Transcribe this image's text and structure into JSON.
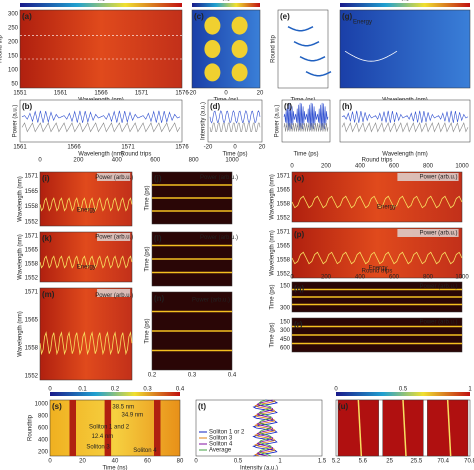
{
  "panels": [
    {
      "label": "(a)",
      "ylabel": "Round trip",
      "xlabel": "Wavelength (nm)",
      "xticks": [
        "1551",
        "1561",
        "1566",
        "1571",
        "1576"
      ],
      "yticks": [
        "300",
        "250",
        "200",
        "150",
        "100",
        "50"
      ],
      "cbar": [
        "0.5"
      ]
    },
    {
      "label": "(c)",
      "xlabel": "Time (ps)",
      "xticks": [
        "-20",
        "0",
        "20"
      ],
      "cbar": [
        "0.5"
      ]
    },
    {
      "label": "(e)",
      "ylabel": "Round trip",
      "xlabel": "Time (ps)"
    },
    {
      "label": "(g)",
      "xlabel": "Wavelength (nm)",
      "notes": [
        "Energy"
      ],
      "cbar": [
        "0.5"
      ]
    },
    {
      "label": "(b)",
      "ylabel": "Power (a.u.)",
      "xlabel": "Wavelength (nm)",
      "xticks": [
        "1561",
        "1566",
        "1571",
        "1576"
      ]
    },
    {
      "label": "(d)",
      "ylabel": "Intensity (a.u.)",
      "xlabel": "Time (ps)",
      "xticks": [
        "-20",
        "0",
        "20"
      ]
    },
    {
      "label": "(f)",
      "ylabel": "Power (a.u.)",
      "xlabel": "Time (ps)"
    },
    {
      "label": "(h)",
      "xlabel": "Wavelength (nm)"
    },
    {
      "label": "(i)",
      "ylabel": "Wavelength (nm)",
      "yticks": [
        "1571",
        "1565",
        "1558",
        "1552"
      ],
      "notes": [
        "Power (arb.u.)",
        "Energy"
      ]
    },
    {
      "label": "(k)",
      "ylabel": "Wavelength (nm)",
      "yticks": [
        "1571",
        "1565",
        "1558",
        "1552"
      ],
      "notes": [
        "Power (arb.u.)",
        "Energy"
      ]
    },
    {
      "label": "(m)",
      "ylabel": "Wavelength (nm)",
      "yticks": [
        "1571",
        "1565",
        "1558",
        "1552"
      ],
      "notes": [
        "Power (arb.u.)"
      ]
    },
    {
      "label": "(j)",
      "ylabel": "Time (ps)",
      "notes": [
        "Power (arb.u.)"
      ]
    },
    {
      "label": "(l)",
      "ylabel": "Time (ps)",
      "notes": [
        "Power (arb.u.)"
      ]
    },
    {
      "label": "(n)",
      "ylabel": "Time (ps)",
      "xticks": [
        "0.2",
        "0.3",
        "0.4"
      ],
      "notes": [
        "Power (arb.u.)"
      ]
    },
    {
      "label": "(o)",
      "ylabel": "Wavelength (nm)",
      "yticks": [
        "1571",
        "1565",
        "1558",
        "1552"
      ],
      "notes": [
        "Power (arb.u.)",
        "Energy"
      ]
    },
    {
      "label": "(p)",
      "ylabel": "Wavelength (nm)",
      "yticks": [
        "1571",
        "1565",
        "1558",
        "1552"
      ],
      "notes": [
        "Power (arb.u.)",
        "Energy"
      ]
    },
    {
      "label": "(q)",
      "ylabel": "Time (ps)",
      "yticks": [
        "150",
        "300"
      ],
      "notes": [
        "Power (arb.u.)"
      ]
    },
    {
      "label": "(r)",
      "ylabel": "Time (ps)",
      "yticks": [
        "150",
        "300",
        "450",
        "600"
      ],
      "notes": [
        "Power (arb.u.)"
      ]
    },
    {
      "label": "(s)",
      "ylabel": "Roundtrip",
      "xlabel": "Time (ns)",
      "xticks": [
        "0",
        "20",
        "40",
        "60",
        "80"
      ],
      "yticks": [
        "1000",
        "800",
        "600",
        "400",
        "200"
      ],
      "cbar": [
        "0",
        "0.1",
        "0.2",
        "0.3",
        "0.4"
      ],
      "notes": [
        "38.5 nm",
        "34.9 nm",
        "Soliton 1 and 2",
        "12.4 nm",
        "Soliton 3",
        "Soliton 4"
      ]
    },
    {
      "label": "(t)",
      "xlabel": "Intensity (a.u.)",
      "xticks": [
        "0",
        "0.5",
        "1",
        "1.5"
      ],
      "legend": [
        "Soliton 1 or 2",
        "Soliton 3",
        "Soliton 4",
        "Average"
      ]
    },
    {
      "label": "(u)",
      "xticks": [
        "5.2",
        "5.6",
        "25",
        "25.5",
        "70.4",
        "70.8"
      ],
      "cbar": [
        "0",
        "0.5",
        "1"
      ]
    }
  ],
  "scales": [
    {
      "label": "Round trips",
      "ticks": [
        "0",
        "200",
        "400",
        "600",
        "800",
        "1000"
      ]
    },
    {
      "label": "Round trips",
      "ticks": [
        "0",
        "200",
        "400",
        "600",
        "800",
        "1000"
      ]
    },
    {
      "label": "Round trips",
      "ticks": [
        "0",
        "200",
        "400",
        "600",
        "800",
        "1000"
      ]
    }
  ]
}
